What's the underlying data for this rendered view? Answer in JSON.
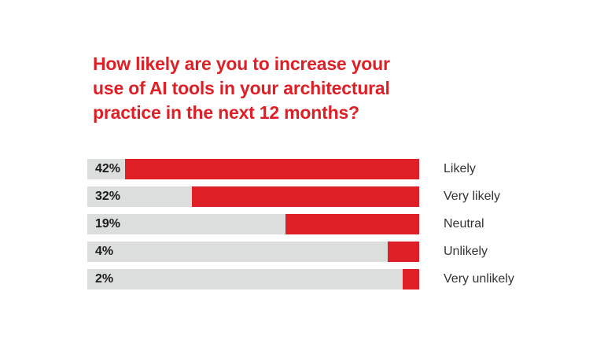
{
  "title": {
    "lines": [
      "How likely are you to increase your",
      "use of AI tools in your architectural",
      "practice in the next 12 months?"
    ]
  },
  "chart_data": {
    "type": "bar",
    "orientation": "horizontal",
    "title": "How likely are you to increase your use of AI tools in your architectural practice in the next 12 months?",
    "categories": [
      "Likely",
      "Very likely",
      "Neutral",
      "Unlikely",
      "Very unlikely"
    ],
    "values": [
      42,
      32,
      19,
      4,
      2
    ],
    "unit": "%",
    "value_labels": [
      "42%",
      "32%",
      "19%",
      "4%",
      "2%"
    ],
    "fill_percent_of_track": [
      88.6,
      68.5,
      40.3,
      9.5,
      5.0
    ],
    "bar_anchor": "right",
    "value_label_position": "inside-left-on-track",
    "category_label_position": "right-of-bar",
    "legend": "none",
    "grid": false,
    "axes": "none",
    "colors": {
      "fill": "#df1f26",
      "track": "#dcdddd",
      "title_text": "#df1f26",
      "value_text": "#1c1c1c",
      "category_text": "#333333",
      "background": "#ffffff"
    }
  }
}
